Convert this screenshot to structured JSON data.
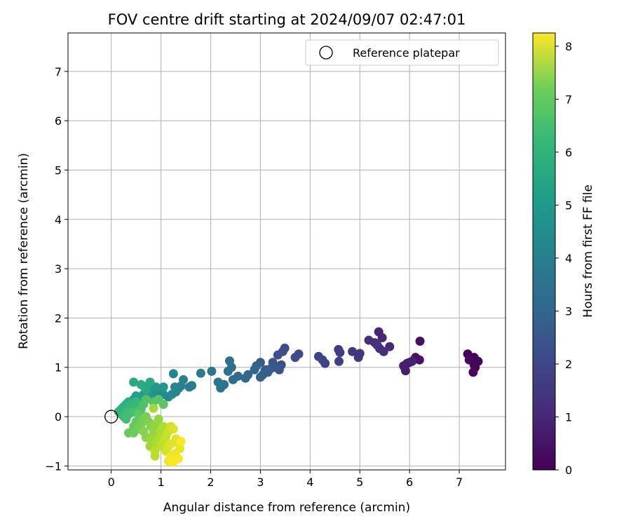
{
  "chart_data": {
    "type": "scatter",
    "title": "FOV centre drift starting at 2024/09/07 02:47:01",
    "xlabel": "Angular distance from reference (arcmin)",
    "ylabel": "Rotation from reference (arcmin)",
    "xlim": [
      -0.87,
      7.93
    ],
    "ylim": [
      -1.08,
      7.78
    ],
    "xticks": [
      0,
      1,
      2,
      3,
      4,
      5,
      6,
      7
    ],
    "yticks": [
      -1,
      0,
      1,
      2,
      3,
      4,
      5,
      6,
      7
    ],
    "grid": true,
    "legend": {
      "position": "top-right",
      "entries": [
        {
          "label": "Reference platepar",
          "marker": "open-circle"
        }
      ]
    },
    "reference_point": {
      "x": 0,
      "y": 0
    },
    "colorbar": {
      "label": "Hours from first FF file",
      "range": [
        0,
        8.25
      ],
      "ticks": [
        0,
        1,
        2,
        3,
        4,
        5,
        6,
        7,
        8
      ],
      "colormap": "viridis"
    },
    "series": [
      {
        "color_by": "hours",
        "points": [
          [
            7.17,
            1.27,
            0.05
          ],
          [
            7.3,
            1.2,
            0.08
          ],
          [
            7.38,
            1.12,
            0.1
          ],
          [
            7.3,
            1.05,
            0.12
          ],
          [
            7.32,
            1.0,
            0.15
          ],
          [
            7.28,
            0.9,
            0.18
          ],
          [
            7.2,
            1.15,
            0.2
          ],
          [
            6.21,
            1.53,
            0.35
          ],
          [
            6.12,
            1.2,
            0.4
          ],
          [
            6.2,
            1.15,
            0.45
          ],
          [
            6.0,
            1.1,
            0.5
          ],
          [
            5.9,
            1.0,
            0.55
          ],
          [
            5.95,
            1.08,
            0.6
          ],
          [
            5.88,
            1.03,
            0.65
          ],
          [
            5.92,
            0.93,
            0.7
          ],
          [
            6.05,
            1.12,
            0.75
          ],
          [
            5.38,
            1.72,
            0.85
          ],
          [
            5.45,
            1.6,
            0.9
          ],
          [
            5.6,
            1.42,
            0.95
          ],
          [
            5.4,
            1.38,
            1.0
          ],
          [
            5.48,
            1.32,
            1.05
          ],
          [
            5.18,
            1.55,
            1.1
          ],
          [
            5.3,
            1.5,
            1.15
          ],
          [
            5.35,
            1.45,
            1.2
          ],
          [
            4.97,
            1.2,
            1.3
          ],
          [
            5.0,
            1.28,
            1.35
          ],
          [
            4.85,
            1.32,
            1.4
          ],
          [
            4.57,
            1.36,
            1.45
          ],
          [
            4.6,
            1.3,
            1.5
          ],
          [
            4.58,
            1.12,
            1.55
          ],
          [
            4.3,
            1.08,
            1.65
          ],
          [
            4.17,
            1.22,
            1.7
          ],
          [
            4.25,
            1.15,
            1.75
          ],
          [
            3.77,
            1.27,
            1.85
          ],
          [
            3.7,
            1.2,
            1.9
          ],
          [
            3.49,
            1.39,
            1.95
          ],
          [
            3.45,
            1.32,
            2.0
          ],
          [
            3.35,
            1.25,
            2.05
          ],
          [
            3.42,
            1.05,
            2.1
          ],
          [
            3.38,
            0.95,
            2.15
          ],
          [
            3.25,
            1.1,
            2.2
          ],
          [
            3.3,
            1.0,
            2.25
          ],
          [
            3.2,
            0.97,
            2.3
          ],
          [
            3.1,
            0.95,
            2.35
          ],
          [
            3.0,
            1.1,
            2.4
          ],
          [
            3.05,
            0.85,
            2.45
          ],
          [
            3.15,
            0.9,
            2.5
          ],
          [
            3.0,
            0.8,
            2.55
          ],
          [
            2.92,
            1.03,
            2.6
          ],
          [
            2.88,
            0.95,
            2.65
          ],
          [
            2.75,
            0.85,
            2.75
          ],
          [
            2.7,
            0.78,
            2.8
          ],
          [
            2.55,
            0.82,
            2.85
          ],
          [
            2.45,
            0.75,
            2.9
          ],
          [
            2.42,
            1.0,
            2.95
          ],
          [
            2.38,
            1.13,
            3.0
          ],
          [
            2.35,
            0.92,
            3.05
          ],
          [
            2.27,
            0.65,
            3.15
          ],
          [
            2.2,
            0.58,
            3.2
          ],
          [
            2.15,
            0.7,
            3.25
          ],
          [
            2.02,
            0.92,
            3.3
          ],
          [
            1.8,
            0.88,
            3.4
          ],
          [
            1.62,
            0.63,
            3.5
          ],
          [
            1.57,
            0.6,
            3.55
          ],
          [
            1.45,
            0.75,
            3.6
          ],
          [
            1.4,
            0.62,
            3.65
          ],
          [
            1.35,
            0.57,
            3.7
          ],
          [
            1.25,
            0.87,
            3.75
          ],
          [
            1.28,
            0.6,
            3.8
          ],
          [
            1.3,
            0.5,
            3.85
          ],
          [
            1.22,
            0.45,
            3.9
          ],
          [
            1.15,
            0.4,
            3.95
          ],
          [
            1.05,
            0.45,
            4.0
          ],
          [
            1.0,
            0.55,
            4.05
          ],
          [
            0.95,
            0.5,
            4.1
          ],
          [
            0.9,
            0.35,
            4.15
          ],
          [
            0.85,
            0.3,
            4.2
          ],
          [
            0.8,
            0.43,
            4.25
          ],
          [
            0.85,
            0.55,
            4.3
          ],
          [
            1.05,
            0.6,
            4.35
          ],
          [
            0.9,
            0.6,
            4.4
          ],
          [
            0.75,
            0.52,
            4.45
          ],
          [
            0.65,
            0.45,
            4.55
          ],
          [
            0.7,
            0.4,
            4.6
          ],
          [
            0.55,
            0.38,
            4.65
          ],
          [
            0.5,
            0.42,
            4.7
          ],
          [
            0.45,
            0.35,
            4.75
          ],
          [
            0.4,
            0.3,
            4.8
          ],
          [
            0.65,
            0.62,
            4.85
          ],
          [
            0.7,
            0.55,
            4.9
          ],
          [
            0.78,
            0.7,
            4.95
          ],
          [
            0.45,
            0.7,
            5.0
          ],
          [
            0.6,
            0.65,
            5.05
          ],
          [
            0.3,
            0.25,
            5.1
          ],
          [
            0.35,
            0.3,
            5.15
          ],
          [
            0.25,
            0.2,
            5.2
          ],
          [
            0.2,
            0.15,
            5.25
          ],
          [
            0.15,
            0.1,
            5.3
          ],
          [
            0.2,
            0.05,
            5.35
          ],
          [
            0.35,
            0.2,
            5.4
          ],
          [
            0.4,
            0.25,
            5.45
          ],
          [
            0.5,
            0.3,
            5.5
          ],
          [
            0.55,
            0.22,
            5.55
          ],
          [
            0.3,
            0.1,
            5.6
          ],
          [
            0.25,
            0.0,
            5.65
          ],
          [
            0.3,
            -0.05,
            5.7
          ],
          [
            0.35,
            0.05,
            5.75
          ],
          [
            0.45,
            0.1,
            5.8
          ],
          [
            0.6,
            0.15,
            5.85
          ],
          [
            0.65,
            0.25,
            5.9
          ],
          [
            0.7,
            0.35,
            5.95
          ],
          [
            0.85,
            0.3,
            6.0
          ],
          [
            0.95,
            0.35,
            6.05
          ],
          [
            1.05,
            0.25,
            6.1
          ],
          [
            0.55,
            0.05,
            6.15
          ],
          [
            0.5,
            -0.1,
            6.2
          ],
          [
            0.45,
            -0.2,
            6.25
          ],
          [
            0.35,
            -0.33,
            6.3
          ],
          [
            0.45,
            -0.33,
            6.35
          ],
          [
            0.55,
            -0.25,
            6.4
          ],
          [
            0.6,
            -0.15,
            6.45
          ],
          [
            0.65,
            -0.05,
            6.5
          ],
          [
            0.7,
            0.0,
            6.55
          ],
          [
            0.75,
            -0.1,
            6.6
          ],
          [
            0.8,
            -0.2,
            6.65
          ],
          [
            0.65,
            -0.3,
            6.7
          ],
          [
            0.7,
            -0.42,
            6.75
          ],
          [
            0.85,
            -0.25,
            6.8
          ],
          [
            0.9,
            -0.15,
            6.85
          ],
          [
            0.95,
            -0.05,
            6.9
          ],
          [
            0.85,
            -0.35,
            6.95
          ],
          [
            0.8,
            -0.48,
            7.0
          ],
          [
            0.78,
            -0.6,
            7.05
          ],
          [
            0.85,
            0.17,
            7.1
          ],
          [
            0.9,
            -0.55,
            7.15
          ],
          [
            0.95,
            -0.45,
            7.2
          ],
          [
            1.0,
            -0.3,
            7.25
          ],
          [
            1.05,
            -0.2,
            7.3
          ],
          [
            0.88,
            -0.7,
            7.35
          ],
          [
            0.88,
            -0.8,
            7.4
          ],
          [
            1.0,
            -0.6,
            7.45
          ],
          [
            1.05,
            -0.5,
            7.5
          ],
          [
            1.1,
            -0.4,
            7.55
          ],
          [
            1.15,
            -0.3,
            7.6
          ],
          [
            1.2,
            -0.2,
            7.65
          ],
          [
            1.1,
            -0.7,
            7.7
          ],
          [
            1.15,
            -0.6,
            7.75
          ],
          [
            1.25,
            -0.25,
            7.8
          ],
          [
            1.2,
            -0.55,
            7.85
          ],
          [
            1.3,
            -0.45,
            7.9
          ],
          [
            1.35,
            -0.55,
            7.95
          ],
          [
            1.38,
            -0.65,
            8.0
          ],
          [
            1.28,
            -0.75,
            8.05
          ],
          [
            1.2,
            -0.8,
            8.1
          ],
          [
            1.15,
            -0.9,
            8.15
          ],
          [
            1.35,
            -0.85,
            8.2
          ],
          [
            1.4,
            -0.5,
            8.22
          ],
          [
            1.25,
            -0.92,
            8.24
          ]
        ]
      }
    ]
  }
}
